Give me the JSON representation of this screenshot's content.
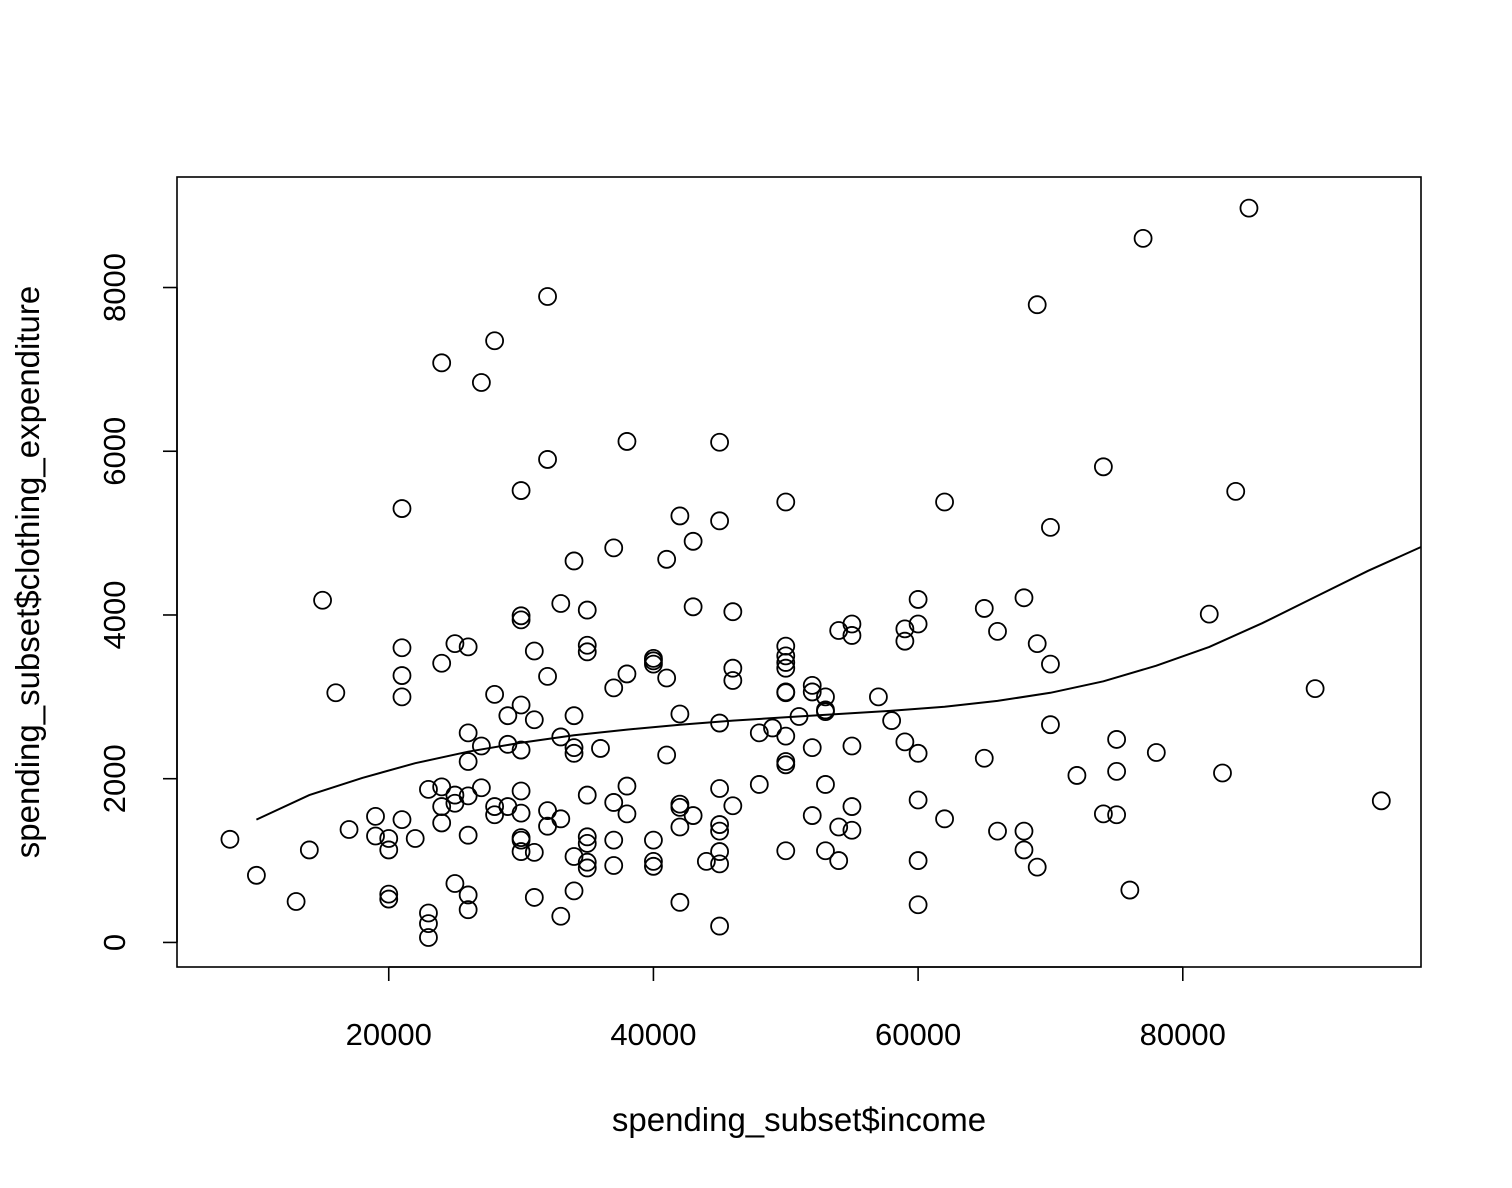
{
  "chart_data": {
    "type": "scatter",
    "xlabel": "spending_subset$income",
    "ylabel": "spending_subset$clothing_expenditure",
    "xlim": [
      4000,
      98000
    ],
    "ylim": [
      -300,
      9350
    ],
    "xticks": [
      20000,
      40000,
      60000,
      80000
    ],
    "yticks": [
      0,
      2000,
      4000,
      6000,
      8000
    ],
    "xtick_labels": [
      "20000",
      "40000",
      "60000",
      "80000"
    ],
    "ytick_labels": [
      "0",
      "2000",
      "4000",
      "6000",
      "8000"
    ],
    "grid": false,
    "legend": "none",
    "point_color": "#000000",
    "points": [
      [
        8000,
        1260
      ],
      [
        10000,
        820
      ],
      [
        13000,
        500
      ],
      [
        14000,
        1130
      ],
      [
        15000,
        4180
      ],
      [
        16000,
        3050
      ],
      [
        17000,
        1380
      ],
      [
        19000,
        1540
      ],
      [
        19000,
        1300
      ],
      [
        20000,
        1270
      ],
      [
        20000,
        1130
      ],
      [
        20000,
        590
      ],
      [
        20000,
        530
      ],
      [
        21000,
        5300
      ],
      [
        21000,
        3600
      ],
      [
        21000,
        3260
      ],
      [
        21000,
        3000
      ],
      [
        21000,
        1500
      ],
      [
        22000,
        1270
      ],
      [
        23000,
        1870
      ],
      [
        23000,
        360
      ],
      [
        23000,
        230
      ],
      [
        23000,
        60
      ],
      [
        24000,
        7080
      ],
      [
        24000,
        3410
      ],
      [
        24000,
        1900
      ],
      [
        24000,
        1660
      ],
      [
        24000,
        1460
      ],
      [
        25000,
        3650
      ],
      [
        25000,
        1800
      ],
      [
        25000,
        1700
      ],
      [
        25000,
        720
      ],
      [
        26000,
        3610
      ],
      [
        26000,
        2560
      ],
      [
        26000,
        2210
      ],
      [
        26000,
        1790
      ],
      [
        26000,
        1310
      ],
      [
        26000,
        580
      ],
      [
        26000,
        400
      ],
      [
        27000,
        6840
      ],
      [
        27000,
        2400
      ],
      [
        27000,
        1890
      ],
      [
        28000,
        7350
      ],
      [
        28000,
        3030
      ],
      [
        28000,
        1660
      ],
      [
        28000,
        1560
      ],
      [
        29000,
        2770
      ],
      [
        29000,
        2420
      ],
      [
        29000,
        1660
      ],
      [
        30000,
        5520
      ],
      [
        30000,
        3990
      ],
      [
        30000,
        3940
      ],
      [
        30000,
        2900
      ],
      [
        30000,
        2350
      ],
      [
        30000,
        1850
      ],
      [
        30000,
        1580
      ],
      [
        30000,
        1280
      ],
      [
        30000,
        1250
      ],
      [
        30000,
        1110
      ],
      [
        31000,
        3560
      ],
      [
        31000,
        2720
      ],
      [
        31000,
        1100
      ],
      [
        31000,
        550
      ],
      [
        32000,
        7890
      ],
      [
        32000,
        5900
      ],
      [
        32000,
        3250
      ],
      [
        32000,
        1610
      ],
      [
        32000,
        1420
      ],
      [
        33000,
        4140
      ],
      [
        33000,
        2510
      ],
      [
        33000,
        1510
      ],
      [
        33000,
        320
      ],
      [
        34000,
        4660
      ],
      [
        34000,
        2770
      ],
      [
        34000,
        2380
      ],
      [
        34000,
        2310
      ],
      [
        34000,
        1050
      ],
      [
        34000,
        630
      ],
      [
        35000,
        4060
      ],
      [
        35000,
        3630
      ],
      [
        35000,
        3550
      ],
      [
        35000,
        1800
      ],
      [
        35000,
        1290
      ],
      [
        35000,
        1210
      ],
      [
        35000,
        980
      ],
      [
        35000,
        910
      ],
      [
        36000,
        2370
      ],
      [
        37000,
        4820
      ],
      [
        37000,
        3110
      ],
      [
        37000,
        1710
      ],
      [
        37000,
        1250
      ],
      [
        37000,
        940
      ],
      [
        38000,
        6120
      ],
      [
        38000,
        3280
      ],
      [
        38000,
        1910
      ],
      [
        38000,
        1570
      ],
      [
        40000,
        3470
      ],
      [
        40000,
        3440
      ],
      [
        40000,
        3400
      ],
      [
        40000,
        1250
      ],
      [
        40000,
        990
      ],
      [
        40000,
        930
      ],
      [
        41000,
        4680
      ],
      [
        41000,
        3230
      ],
      [
        41000,
        2290
      ],
      [
        42000,
        5210
      ],
      [
        42000,
        2790
      ],
      [
        42000,
        1690
      ],
      [
        42000,
        1650
      ],
      [
        42000,
        1410
      ],
      [
        42000,
        490
      ],
      [
        43000,
        4900
      ],
      [
        43000,
        4100
      ],
      [
        43000,
        1550
      ],
      [
        44000,
        990
      ],
      [
        45000,
        6110
      ],
      [
        45000,
        5150
      ],
      [
        45000,
        2680
      ],
      [
        45000,
        1880
      ],
      [
        45000,
        1440
      ],
      [
        45000,
        1360
      ],
      [
        45000,
        1110
      ],
      [
        45000,
        960
      ],
      [
        45000,
        200
      ],
      [
        46000,
        4040
      ],
      [
        46000,
        3350
      ],
      [
        46000,
        3200
      ],
      [
        46000,
        1670
      ],
      [
        48000,
        2560
      ],
      [
        48000,
        1930
      ],
      [
        49000,
        2620
      ],
      [
        50000,
        5380
      ],
      [
        50000,
        3620
      ],
      [
        50000,
        3500
      ],
      [
        50000,
        3420
      ],
      [
        50000,
        3350
      ],
      [
        50000,
        3060
      ],
      [
        50000,
        3050
      ],
      [
        50000,
        2520
      ],
      [
        50000,
        2210
      ],
      [
        50000,
        2170
      ],
      [
        50000,
        1120
      ],
      [
        51000,
        2760
      ],
      [
        52000,
        3140
      ],
      [
        52000,
        3060
      ],
      [
        52000,
        2380
      ],
      [
        52000,
        1550
      ],
      [
        53000,
        3000
      ],
      [
        53000,
        2840
      ],
      [
        53000,
        2820
      ],
      [
        53000,
        1930
      ],
      [
        53000,
        1120
      ],
      [
        54000,
        3810
      ],
      [
        54000,
        1410
      ],
      [
        54000,
        1000
      ],
      [
        55000,
        3890
      ],
      [
        55000,
        3750
      ],
      [
        55000,
        2400
      ],
      [
        55000,
        1660
      ],
      [
        55000,
        1370
      ],
      [
        57000,
        3000
      ],
      [
        58000,
        2710
      ],
      [
        59000,
        3830
      ],
      [
        59000,
        3680
      ],
      [
        59000,
        2450
      ],
      [
        60000,
        4190
      ],
      [
        60000,
        3890
      ],
      [
        60000,
        2310
      ],
      [
        60000,
        1740
      ],
      [
        60000,
        1000
      ],
      [
        60000,
        460
      ],
      [
        62000,
        5380
      ],
      [
        62000,
        1510
      ],
      [
        65000,
        4080
      ],
      [
        65000,
        2250
      ],
      [
        66000,
        3800
      ],
      [
        66000,
        1360
      ],
      [
        68000,
        4210
      ],
      [
        68000,
        1360
      ],
      [
        68000,
        1130
      ],
      [
        69000,
        7790
      ],
      [
        69000,
        3650
      ],
      [
        69000,
        920
      ],
      [
        70000,
        5070
      ],
      [
        70000,
        3400
      ],
      [
        70000,
        2660
      ],
      [
        72000,
        2040
      ],
      [
        74000,
        5810
      ],
      [
        74000,
        1570
      ],
      [
        75000,
        2480
      ],
      [
        75000,
        2090
      ],
      [
        75000,
        1560
      ],
      [
        76000,
        640
      ],
      [
        77000,
        8600
      ],
      [
        78000,
        2320
      ],
      [
        82000,
        4010
      ],
      [
        83000,
        2070
      ],
      [
        84000,
        5510
      ],
      [
        85000,
        8970
      ],
      [
        90000,
        3100
      ],
      [
        95000,
        1730
      ]
    ],
    "smooth_line": [
      [
        10000,
        1500
      ],
      [
        14000,
        1800
      ],
      [
        18000,
        2010
      ],
      [
        22000,
        2190
      ],
      [
        26000,
        2330
      ],
      [
        30000,
        2440
      ],
      [
        34000,
        2530
      ],
      [
        38000,
        2600
      ],
      [
        42000,
        2660
      ],
      [
        46000,
        2710
      ],
      [
        50000,
        2750
      ],
      [
        54000,
        2790
      ],
      [
        58000,
        2830
      ],
      [
        62000,
        2880
      ],
      [
        66000,
        2950
      ],
      [
        70000,
        3050
      ],
      [
        74000,
        3190
      ],
      [
        78000,
        3380
      ],
      [
        82000,
        3610
      ],
      [
        86000,
        3900
      ],
      [
        90000,
        4220
      ],
      [
        94000,
        4540
      ],
      [
        98000,
        4830
      ]
    ]
  }
}
